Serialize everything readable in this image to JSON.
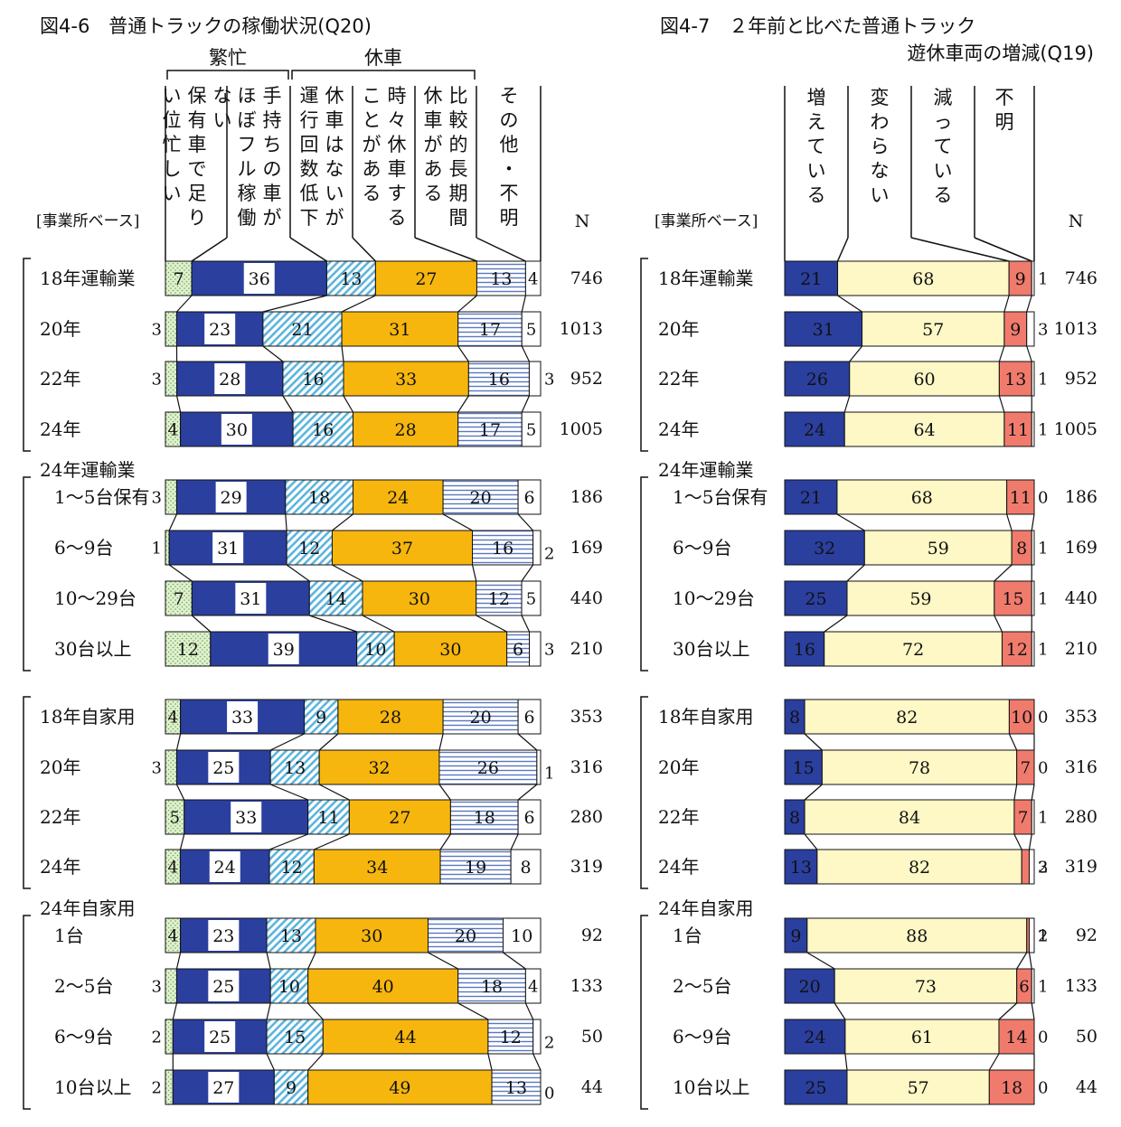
{
  "chart_data": [
    {
      "type": "bar",
      "stacked": "100%",
      "orientation": "horizontal",
      "title": "図4-6　普通トラックの稼働状況(Q20)",
      "base_label": "[事業所ベース]",
      "n_label": "N",
      "group_headers": [
        {
          "label": "繁忙",
          "spans": [
            0,
            1
          ]
        },
        {
          "label": "休車",
          "spans": [
            2,
            3,
            4
          ]
        }
      ],
      "series": [
        {
          "name": "ない保有車で足りい位忙しい",
          "lines": [
            "ない",
            "保有車で足り",
            "い位忙しい"
          ],
          "color": "#d9efc9"
        },
        {
          "name": "手持ちの車がほぼフル稼働",
          "lines": [
            "手持ちの車が",
            "ほぼフル稼働"
          ],
          "color": "#2b3f9e"
        },
        {
          "name": "休車はないが運行回数低下",
          "lines": [
            "休車はないが",
            "運行回数低下"
          ],
          "color": "#b7e0f0"
        },
        {
          "name": "時々休車することがある",
          "lines": [
            "時々休車する",
            "ことがある"
          ],
          "color": "#f6b60e"
        },
        {
          "name": "比較的長期間休車がある",
          "lines": [
            "比較的長期間",
            "休車がある"
          ],
          "color": "#ffffff"
        },
        {
          "name": "その他・不明",
          "lines": [
            "その他・不明"
          ],
          "color": "#ffffff"
        }
      ],
      "groups": [
        {
          "label": "",
          "rows": [
            {
              "label": "18年運輸業",
              "values": [
                7,
                36,
                13,
                27,
                13,
                4
              ],
              "n": "746"
            },
            {
              "label": "20年",
              "values": [
                3,
                23,
                21,
                31,
                17,
                5
              ],
              "n": "1013"
            },
            {
              "label": "22年",
              "values": [
                3,
                28,
                16,
                33,
                16,
                3
              ],
              "n": "952"
            },
            {
              "label": "24年",
              "values": [
                4,
                30,
                16,
                28,
                17,
                5
              ],
              "n": "1005"
            }
          ]
        },
        {
          "label": "24年運輸業",
          "rows": [
            {
              "label": "1～5台保有",
              "values": [
                3,
                29,
                18,
                24,
                20,
                6
              ],
              "n": "186"
            },
            {
              "label": "6～9台",
              "values": [
                1,
                31,
                12,
                37,
                16,
                2
              ],
              "n": "169"
            },
            {
              "label": "10～29台",
              "values": [
                7,
                31,
                14,
                30,
                12,
                5
              ],
              "n": "440"
            },
            {
              "label": "30台以上",
              "values": [
                12,
                39,
                10,
                30,
                6,
                3
              ],
              "n": "210"
            }
          ]
        },
        {
          "label": "",
          "rows": [
            {
              "label": "18年自家用",
              "values": [
                4,
                33,
                9,
                28,
                20,
                6
              ],
              "n": "353"
            },
            {
              "label": "20年",
              "values": [
                3,
                25,
                13,
                32,
                26,
                1
              ],
              "n": "316"
            },
            {
              "label": "22年",
              "values": [
                5,
                33,
                11,
                27,
                18,
                6
              ],
              "n": "280"
            },
            {
              "label": "24年",
              "values": [
                4,
                24,
                12,
                34,
                19,
                8
              ],
              "n": "319"
            }
          ]
        },
        {
          "label": "24年自家用",
          "rows": [
            {
              "label": "1台",
              "values": [
                4,
                23,
                13,
                30,
                20,
                10
              ],
              "n": "92"
            },
            {
              "label": "2～5台",
              "values": [
                3,
                25,
                10,
                40,
                18,
                4
              ],
              "n": "133"
            },
            {
              "label": "6～9台",
              "values": [
                2,
                25,
                15,
                44,
                12,
                2
              ],
              "n": "50"
            },
            {
              "label": "10台以上",
              "values": [
                2,
                27,
                9,
                49,
                13,
                0
              ],
              "n": "44"
            }
          ]
        }
      ]
    },
    {
      "type": "bar",
      "stacked": "100%",
      "orientation": "horizontal",
      "title_lines": [
        "図4-7　２年前と比べた普通トラック",
        "遊休車両の増減(Q19)"
      ],
      "base_label": "[事業所ベース]",
      "n_label": "N",
      "series": [
        {
          "name": "増えている",
          "lines": [
            "増えている"
          ],
          "color": "#2b3f9e"
        },
        {
          "name": "変わらない",
          "lines": [
            "変わらない"
          ],
          "color": "#fdf8c5"
        },
        {
          "name": "減っている",
          "lines": [
            "減っている"
          ],
          "color": "#f07b6d"
        },
        {
          "name": "不明",
          "lines": [
            "不明"
          ],
          "color": "#ffffff"
        }
      ],
      "groups": [
        {
          "label": "",
          "rows": [
            {
              "label": "18年運輸業",
              "values": [
                21,
                68,
                9,
                1
              ],
              "n": "746"
            },
            {
              "label": "20年",
              "values": [
                31,
                57,
                9,
                3
              ],
              "n": "1013"
            },
            {
              "label": "22年",
              "values": [
                26,
                60,
                13,
                1
              ],
              "n": "952"
            },
            {
              "label": "24年",
              "values": [
                24,
                64,
                11,
                1
              ],
              "n": "1005"
            }
          ]
        },
        {
          "label": "24年運輸業",
          "rows": [
            {
              "label": "1～5台保有",
              "values": [
                21,
                68,
                11,
                0
              ],
              "n": "186"
            },
            {
              "label": "6～9台",
              "values": [
                32,
                59,
                8,
                1
              ],
              "n": "169"
            },
            {
              "label": "10～29台",
              "values": [
                25,
                59,
                15,
                1
              ],
              "n": "440"
            },
            {
              "label": "30台以上",
              "values": [
                16,
                72,
                12,
                1
              ],
              "n": "210"
            }
          ]
        },
        {
          "label": "",
          "rows": [
            {
              "label": "18年自家用",
              "values": [
                8,
                82,
                10,
                0
              ],
              "n": "353"
            },
            {
              "label": "20年",
              "values": [
                15,
                78,
                7,
                0
              ],
              "n": "316"
            },
            {
              "label": "22年",
              "values": [
                8,
                84,
                7,
                1
              ],
              "n": "280"
            },
            {
              "label": "24年",
              "values": [
                13,
                82,
                3,
                2
              ],
              "n": "319"
            }
          ]
        },
        {
          "label": "24年自家用",
          "rows": [
            {
              "label": "1台",
              "values": [
                9,
                88,
                1,
                2
              ],
              "n": "92"
            },
            {
              "label": "2～5台",
              "values": [
                20,
                73,
                6,
                1
              ],
              "n": "133"
            },
            {
              "label": "6～9台",
              "values": [
                24,
                61,
                14,
                0
              ],
              "n": "50"
            },
            {
              "label": "10台以上",
              "values": [
                25,
                57,
                18,
                0
              ],
              "n": "44"
            }
          ]
        }
      ]
    }
  ]
}
